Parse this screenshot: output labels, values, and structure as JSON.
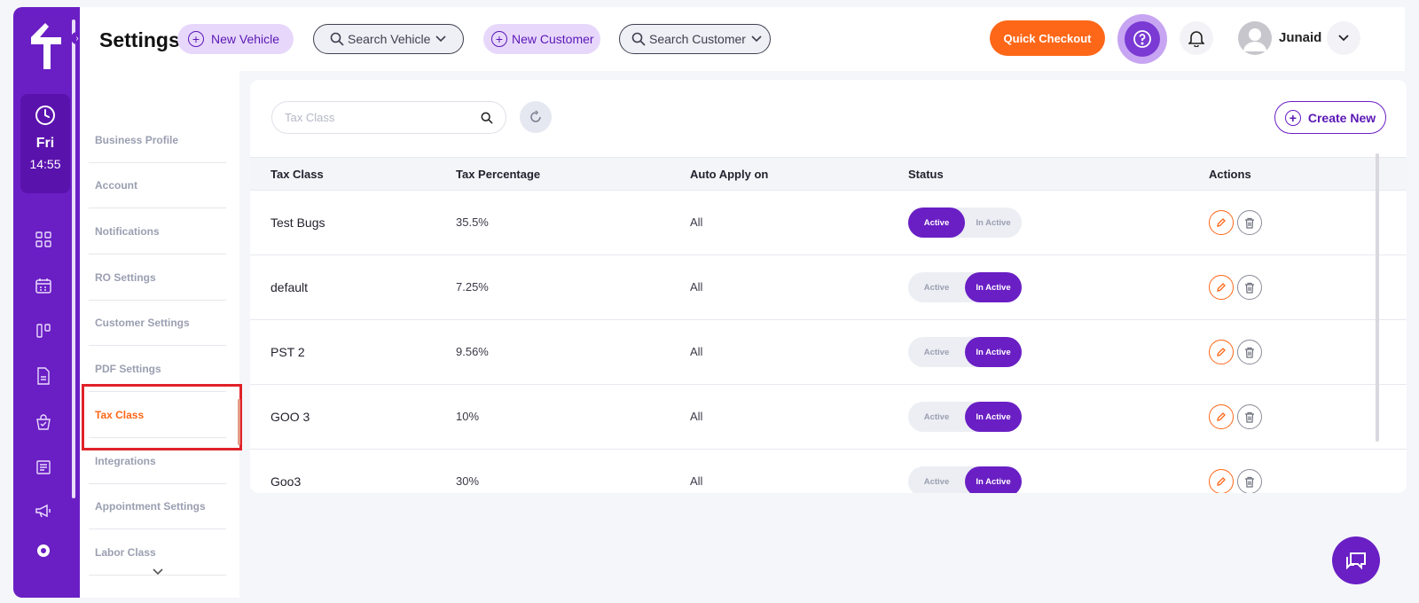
{
  "sidebar": {
    "clock": {
      "day": "Fri",
      "time": "14:55"
    },
    "icons": [
      "dashboard-icon",
      "calendar-icon",
      "board-icon",
      "document-icon",
      "bag-icon",
      "report-icon",
      "megaphone-icon",
      "settings-icon"
    ]
  },
  "header": {
    "title": "Settings",
    "new_vehicle": "New Vehicle",
    "search_vehicle": "Search Vehicle",
    "new_customer": "New Customer",
    "search_customer": "Search Customer",
    "quick_checkout": "Quick Checkout",
    "user_name": "Junaid"
  },
  "settings_nav": {
    "items": [
      {
        "label": "Business Profile"
      },
      {
        "label": "Account"
      },
      {
        "label": "Notifications"
      },
      {
        "label": "RO Settings"
      },
      {
        "label": "Customer Settings"
      },
      {
        "label": "PDF Settings"
      },
      {
        "label": "Tax Class",
        "active": true
      },
      {
        "label": "Integrations"
      },
      {
        "label": "Appointment Settings"
      },
      {
        "label": "Labor Class"
      }
    ]
  },
  "main": {
    "search_placeholder": "Tax Class",
    "create_new": "Create New",
    "columns": [
      "Tax Class",
      "Tax Percentage",
      "Auto Apply on",
      "Status",
      "Actions"
    ],
    "status_labels": {
      "active": "Active",
      "inactive": "In Active"
    },
    "rows": [
      {
        "name": "Test Bugs",
        "percentage": "35.5%",
        "auto_apply": "All",
        "status": "active"
      },
      {
        "name": "default",
        "percentage": "7.25%",
        "auto_apply": "All",
        "status": "inactive"
      },
      {
        "name": "PST 2",
        "percentage": "9.56%",
        "auto_apply": "All",
        "status": "inactive"
      },
      {
        "name": "GOO 3",
        "percentage": "10%",
        "auto_apply": "All",
        "status": "inactive"
      },
      {
        "name": "Goo3",
        "percentage": "30%",
        "auto_apply": "All",
        "status": "inactive"
      }
    ]
  },
  "colors": {
    "brand": "#6a1fc4",
    "accent": "#fe6718",
    "highlight": "#e0222a"
  }
}
